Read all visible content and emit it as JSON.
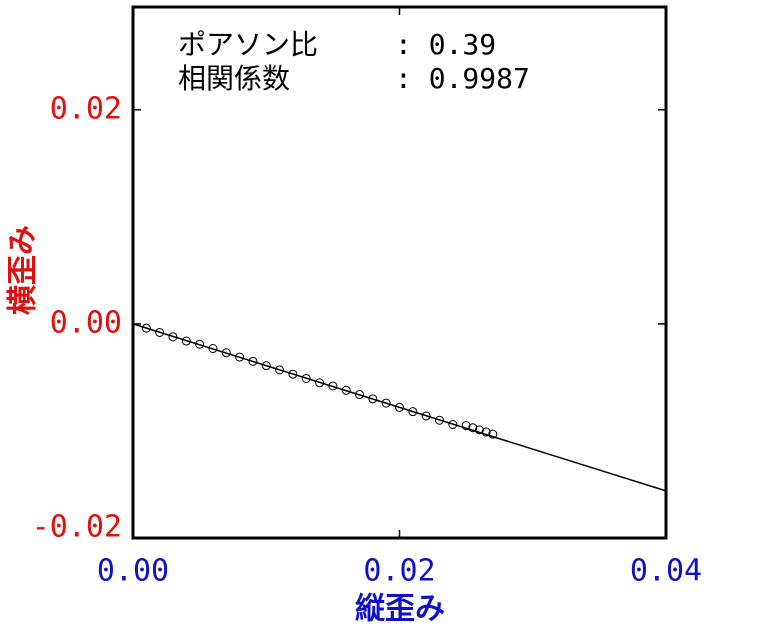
{
  "chart_data": {
    "type": "scatter",
    "annotations": [
      "ポアソン比",
      ": 0.39",
      "相関係数",
      ": 0.9987"
    ],
    "xlabel": "縦歪み",
    "ylabel": "横歪み",
    "x": [
      0.001,
      0.002,
      0.003,
      0.004,
      0.005,
      0.006,
      0.007,
      0.008,
      0.009,
      0.01,
      0.011,
      0.012,
      0.013,
      0.014,
      0.015,
      0.016,
      0.017,
      0.018,
      0.019,
      0.02,
      0.021,
      0.022,
      0.023,
      0.024,
      0.025,
      0.0255,
      0.026,
      0.0265,
      0.027
    ],
    "values": [
      -0.0004,
      -0.0008,
      -0.0012,
      -0.0016,
      -0.0019,
      -0.0023,
      -0.0027,
      -0.0031,
      -0.0035,
      -0.0039,
      -0.0043,
      -0.0047,
      -0.0051,
      -0.0055,
      -0.0058,
      -0.0062,
      -0.0066,
      -0.007,
      -0.0074,
      -0.0078,
      -0.0082,
      -0.0086,
      -0.009,
      -0.0094,
      -0.0095,
      -0.0097,
      -0.0099,
      -0.0101,
      -0.0103
    ],
    "color": "#000000",
    "fit": {
      "x": [
        0,
        0.04
      ],
      "values": [
        0,
        -0.0156
      ]
    },
    "xlim": [
      0,
      0.04
    ],
    "ylim": [
      -0.02,
      0.0296
    ],
    "xticks": [
      {
        "value": 0,
        "label": "0.00"
      },
      0.02,
      0.04
    ],
    "yticks": [
      -0.02,
      {
        "value": 0,
        "label": "0.00"
      },
      0.02
    ],
    "xtick_color": "#1010c8",
    "ytick_color": "#e01010"
  }
}
